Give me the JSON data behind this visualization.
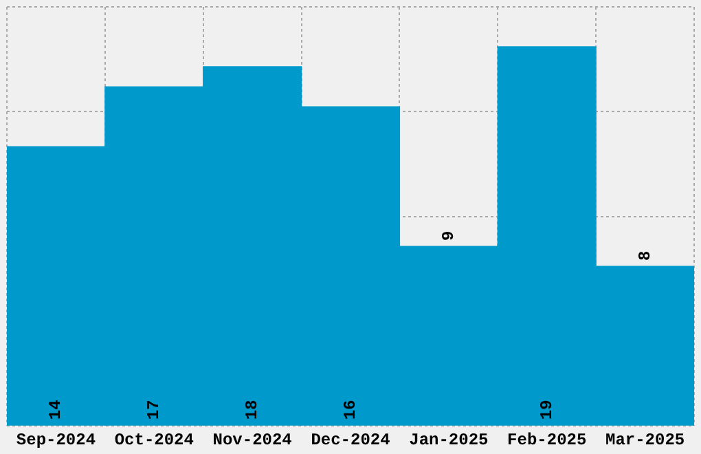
{
  "chart_data": {
    "type": "bar",
    "categories": [
      "Sep-2024",
      "Oct-2024",
      "Nov-2024",
      "Dec-2024",
      "Jan-2025",
      "Feb-2025",
      "Mar-2025"
    ],
    "values": [
      14,
      17,
      18,
      16,
      9,
      19,
      8
    ],
    "color": "#0099cc",
    "ylim": [
      0,
      21
    ],
    "tick_labels": "x",
    "grid": true,
    "data_labels": true
  }
}
